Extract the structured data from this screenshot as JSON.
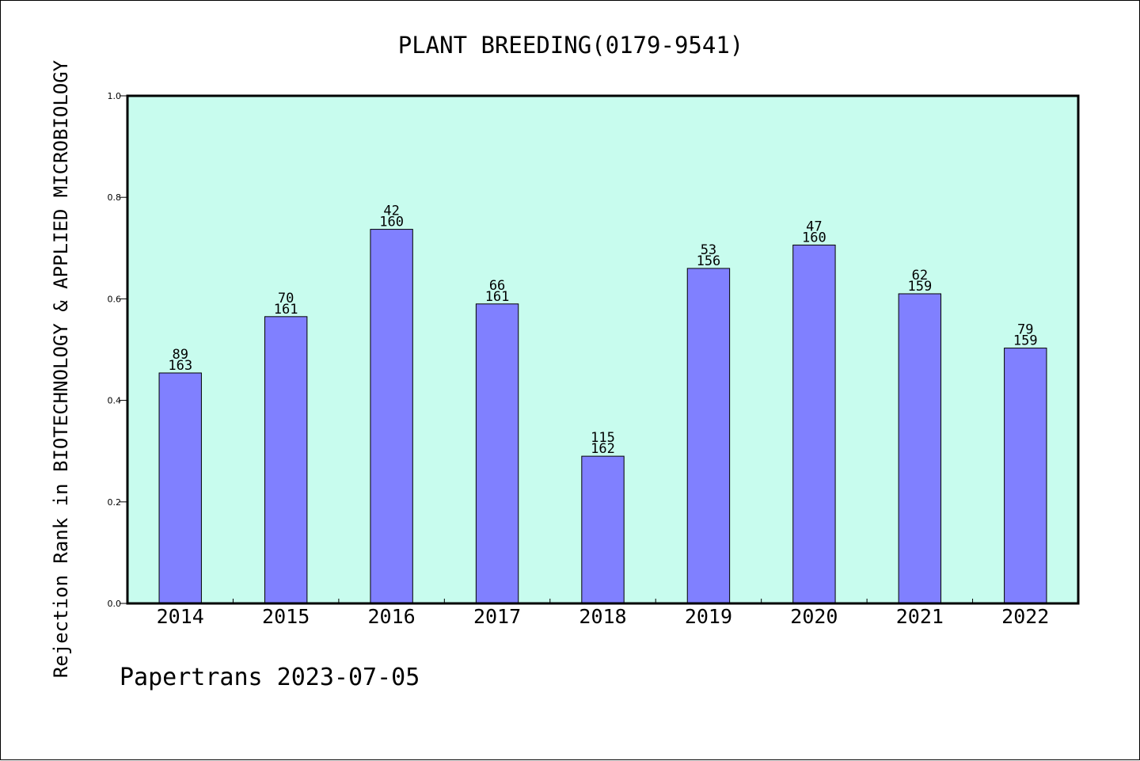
{
  "chart_data": {
    "type": "bar",
    "title": "PLANT BREEDING(0179-9541)",
    "xlabel": "",
    "ylabel": "Rejection Rank in BIOTECHNOLOGY & APPLIED MICROBIOLOGY",
    "ylim": [
      0.0,
      1.0
    ],
    "yticks": [
      "0.0",
      "0.2",
      "0.4",
      "0.6",
      "0.8",
      "1.0"
    ],
    "grid": false,
    "categories": [
      "2014",
      "2015",
      "2016",
      "2017",
      "2018",
      "2019",
      "2020",
      "2021",
      "2022"
    ],
    "values": [
      0.454,
      0.565,
      0.737,
      0.59,
      0.29,
      0.66,
      0.706,
      0.61,
      0.503
    ],
    "rank_labels": [
      "89",
      "70",
      "42",
      "66",
      "115",
      "53",
      "47",
      "62",
      "79"
    ],
    "total_labels": [
      "163",
      "161",
      "160",
      "161",
      "162",
      "156",
      "160",
      "159",
      "159"
    ],
    "colors": {
      "bar": "#8080ff",
      "plot_background": "#c8fcee",
      "axis": "#000000"
    }
  },
  "footer": {
    "text": "Papertrans 2023-07-05"
  }
}
